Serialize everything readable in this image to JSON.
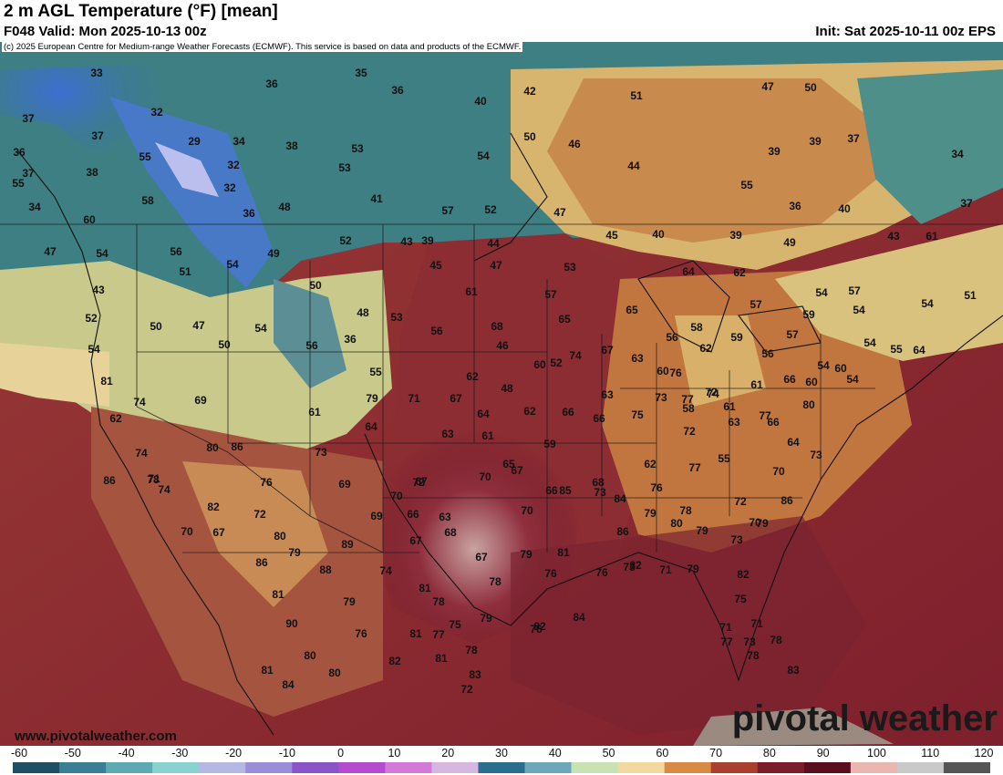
{
  "header": {
    "title": "2 m AGL Temperature (°F) [mean]",
    "valid": "F048 Valid: Mon 2025-10-13 00z",
    "init": "Init: Sat 2025-10-11 00z EPS",
    "copyright": "(c) 2025 European Centre for Medium-range Weather Forecasts (ECMWF). This service is based on data and products of the ECMWF."
  },
  "watermark": {
    "url": "www.pivotalweather.com",
    "brand": "pivotal weather"
  },
  "map": {
    "temperature_labels": [
      "33",
      "35",
      "36",
      "36",
      "40",
      "42",
      "51",
      "47",
      "50",
      "37",
      "32",
      "37",
      "29",
      "34",
      "32",
      "32",
      "36",
      "38",
      "53",
      "53",
      "50",
      "46",
      "39",
      "37",
      "34",
      "36",
      "37",
      "38",
      "55",
      "55",
      "34",
      "44",
      "39",
      "54",
      "58",
      "48",
      "41",
      "55",
      "36",
      "40",
      "37",
      "47",
      "60",
      "57",
      "52",
      "47",
      "45",
      "40",
      "39",
      "49",
      "43",
      "61",
      "54",
      "56",
      "54",
      "49",
      "52",
      "43",
      "39",
      "45",
      "44",
      "47",
      "53",
      "64",
      "62",
      "54",
      "57",
      "54",
      "51",
      "51",
      "43",
      "50",
      "61",
      "57",
      "57",
      "59",
      "54",
      "52",
      "50",
      "47",
      "54",
      "48",
      "53",
      "56",
      "68",
      "65",
      "65",
      "56",
      "58",
      "59",
      "57",
      "54",
      "55",
      "50",
      "56",
      "36",
      "46",
      "74",
      "67",
      "63",
      "60",
      "62",
      "56",
      "54",
      "54",
      "64",
      "54",
      "52",
      "73",
      "76",
      "72",
      "61",
      "60",
      "60",
      "55",
      "62",
      "60",
      "48",
      "58",
      "61",
      "66",
      "81",
      "79",
      "71",
      "67",
      "64",
      "62",
      "66",
      "63",
      "77",
      "74",
      "77",
      "80",
      "74",
      "69",
      "61",
      "64",
      "63",
      "61",
      "59",
      "66",
      "75",
      "72",
      "63",
      "66",
      "64",
      "62",
      "74",
      "71",
      "80",
      "86",
      "73",
      "69",
      "67",
      "65",
      "68",
      "62",
      "77",
      "55",
      "70",
      "73",
      "86",
      "78",
      "76",
      "70",
      "72",
      "70",
      "67",
      "66",
      "84",
      "76",
      "78",
      "72",
      "79",
      "86",
      "82",
      "74",
      "72",
      "69",
      "66",
      "63",
      "70",
      "85",
      "73",
      "86",
      "79",
      "80",
      "79",
      "73",
      "70",
      "70",
      "67",
      "80",
      "67",
      "68",
      "67",
      "79",
      "81",
      "76",
      "73",
      "71",
      "79",
      "82",
      "79",
      "89",
      "88",
      "74",
      "81",
      "78",
      "76",
      "82",
      "75",
      "86",
      "81",
      "79",
      "78",
      "75",
      "79",
      "82",
      "84",
      "90",
      "76",
      "81",
      "77",
      "78",
      "83",
      "71",
      "73",
      "71",
      "77",
      "78",
      "83",
      "80",
      "80",
      "82",
      "81",
      "72",
      "76",
      "78",
      "81",
      "84"
    ]
  },
  "colorbar": {
    "ticks": [
      "-60",
      "-50",
      "-40",
      "-30",
      "-20",
      "-10",
      "0",
      "10",
      "20",
      "30",
      "40",
      "50",
      "60",
      "70",
      "80",
      "90",
      "100",
      "110",
      "120"
    ],
    "colors": [
      "#1e4f63",
      "#3b7f95",
      "#5fa9b3",
      "#8ad2cf",
      "#b6b7e3",
      "#9a8ed8",
      "#8a55c9",
      "#b44bd0",
      "#d37ad8",
      "#d6b7df",
      "#2a6e8f",
      "#6ea8b8",
      "#c9e2b4",
      "#f2d9a0",
      "#d98b45",
      "#a8402d",
      "#7a1f2a",
      "#5a0f1e",
      "#e9b6b0",
      "#c9c9c9",
      "#555555"
    ]
  }
}
